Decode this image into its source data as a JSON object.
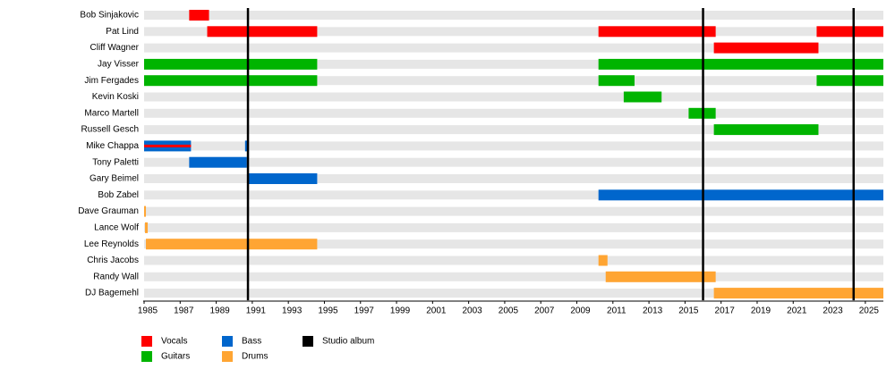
{
  "chart_data": {
    "type": "timeline",
    "categories": [
      "Bob Sinjakovic",
      "Pat Lind",
      "Cliff Wagner",
      "Jay Visser",
      "Jim Fergades",
      "Kevin Koski",
      "Marco Martell",
      "Russell Gesch",
      "Mike Chappa",
      "Tony Paletti",
      "Gary Beimel",
      "Bob Zabel",
      "Dave Grauman",
      "Lance Wolf",
      "Lee Reynolds",
      "Chris Jacobs",
      "Randy Wall",
      "DJ Bagemehl"
    ],
    "xlim": [
      1985,
      2026
    ],
    "xticks": [
      1985,
      1987,
      1989,
      1991,
      1993,
      1995,
      1997,
      1999,
      2001,
      2003,
      2005,
      2007,
      2009,
      2011,
      2013,
      2015,
      2017,
      2019,
      2021,
      2023,
      2025
    ],
    "series": [
      {
        "name": "Vocals",
        "color": "#ff0000",
        "periods": [
          {
            "row": 0,
            "start": 1987.5,
            "end": 1988.6
          },
          {
            "row": 1,
            "start": 1988.5,
            "end": 1994.6
          },
          {
            "row": 1,
            "start": 2010.2,
            "end": 2016.7
          },
          {
            "row": 1,
            "start": 2022.3,
            "end": 2026
          },
          {
            "row": 2,
            "start": 2016.6,
            "end": 2022.4
          },
          {
            "row": 8,
            "start": 1985,
            "end": 1987.6
          }
        ]
      },
      {
        "name": "Guitars",
        "color": "#00b400",
        "periods": [
          {
            "row": 3,
            "start": 1985,
            "end": 1994.6
          },
          {
            "row": 3,
            "start": 2010.2,
            "end": 2026
          },
          {
            "row": 4,
            "start": 1985,
            "end": 1994.6
          },
          {
            "row": 4,
            "start": 2010.2,
            "end": 2012.2
          },
          {
            "row": 4,
            "start": 2022.3,
            "end": 2026
          },
          {
            "row": 5,
            "start": 2011.6,
            "end": 2013.7
          },
          {
            "row": 6,
            "start": 2015.2,
            "end": 2016.7
          },
          {
            "row": 7,
            "start": 2016.6,
            "end": 2022.4
          }
        ]
      },
      {
        "name": "Bass",
        "color": "#0066cc",
        "periods": [
          {
            "row": 8,
            "start": 1985,
            "end": 1987.6
          },
          {
            "row": 8,
            "start": 1990.6,
            "end": 1990.8
          },
          {
            "row": 9,
            "start": 1987.5,
            "end": 1990.7
          },
          {
            "row": 10,
            "start": 1990.8,
            "end": 1994.6
          },
          {
            "row": 11,
            "start": 2010.2,
            "end": 2026
          }
        ]
      },
      {
        "name": "Drums",
        "color": "#ffa533",
        "periods": [
          {
            "row": 12,
            "start": 1985,
            "end": 1985.1
          },
          {
            "row": 13,
            "start": 1985.05,
            "end": 1985.2
          },
          {
            "row": 14,
            "start": 1985.1,
            "end": 1994.6
          },
          {
            "row": 15,
            "start": 2010.2,
            "end": 2010.7
          },
          {
            "row": 16,
            "start": 2010.6,
            "end": 2016.7
          },
          {
            "row": 17,
            "start": 2016.6,
            "end": 2026
          }
        ]
      }
    ],
    "albums": {
      "name": "Studio album",
      "color": "#000000",
      "values": [
        1990.76,
        2016.0,
        2024.35
      ]
    }
  }
}
